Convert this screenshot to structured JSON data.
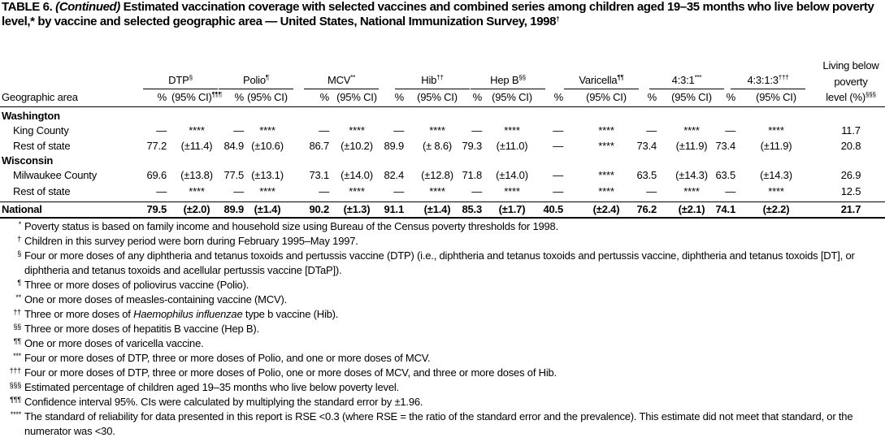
{
  "title": {
    "label": "TABLE 6.",
    "continued": "(Continued)",
    "text": "Estimated vaccination coverage with selected vaccines and combined series among children aged 19–35 months who live below poverty level,* by vaccine and selected geographic area — United States, National Immunization Survey, 1998",
    "mark": "†"
  },
  "header": {
    "area": "Geographic area",
    "groups": [
      {
        "name": "DTP",
        "mark": "§"
      },
      {
        "name": "Polio",
        "mark": "¶"
      },
      {
        "name": "MCV",
        "mark": "**"
      },
      {
        "name": "Hib",
        "mark": "††"
      },
      {
        "name": "Hep B",
        "mark": "§§"
      },
      {
        "name": "Varicella",
        "mark": "¶¶"
      },
      {
        "name": "4:3:1",
        "mark": "***"
      },
      {
        "name": "4:3:1:3",
        "mark": "†††"
      }
    ],
    "pct": "%",
    "ci": "(95% CI)",
    "ci_mark": "¶¶¶",
    "poverty": [
      "Living below",
      "poverty",
      "level (%)"
    ],
    "poverty_mark": "§§§"
  },
  "rows": [
    {
      "label": "Washington"
    },
    {
      "label": "King County",
      "cells": [
        "—",
        "****",
        "—",
        "****",
        "—",
        "****",
        "—",
        "****",
        "—",
        "****",
        "—",
        "****",
        "—",
        "****",
        "—",
        "****"
      ],
      "poverty": "11.7"
    },
    {
      "label": "Rest of state",
      "cells": [
        "77.2",
        "(±11.4)",
        "84.9",
        "(±10.6)",
        "86.7",
        "(±10.2)",
        "89.9",
        "(± 8.6)",
        "79.3",
        "(±11.0)",
        "—",
        "****",
        "73.4",
        "(±11.9)",
        "73.4",
        "(±11.9)"
      ],
      "poverty": "20.8"
    },
    {
      "label": "Wisconsin"
    },
    {
      "label": "Milwaukee County",
      "cells": [
        "69.6",
        "(±13.8)",
        "77.5",
        "(±13.1)",
        "73.1",
        "(±14.0)",
        "82.4",
        "(±12.8)",
        "71.8",
        "(±14.0)",
        "—",
        "****",
        "63.5",
        "(±14.3)",
        "63.5",
        "(±14.3)"
      ],
      "poverty": "26.9"
    },
    {
      "label": "Rest of state",
      "cells": [
        "—",
        "****",
        "—",
        "****",
        "—",
        "****",
        "—",
        "****",
        "—",
        "****",
        "—",
        "****",
        "—",
        "****",
        "—",
        "****"
      ],
      "poverty": "12.5"
    },
    {
      "label": "National",
      "cells": [
        "79.5",
        "(±2.0)",
        "89.9",
        "(±1.4)",
        "90.2",
        "(±1.3)",
        "91.1",
        "(±1.4)",
        "85.3",
        "(±1.7)",
        "40.5",
        "(±2.4)",
        "76.2",
        "(±2.1)",
        "74.1",
        "(±2.2)"
      ],
      "poverty": "21.7"
    }
  ],
  "footnotes": [
    {
      "symbol": "*",
      "text": "Poverty status is based on family income and household size using Bureau of the Census poverty thresholds for 1998."
    },
    {
      "symbol": "†",
      "text": "Children in this survey period were born during February 1995–May 1997."
    },
    {
      "symbol": "§",
      "text": "Four or more doses of any diphtheria and tetanus toxoids and pertussis vaccine (DTP) (i.e., diphtheria and tetanus toxoids and pertussis vaccine, diphtheria and tetanus toxoids [DT], or diphtheria and tetanus toxoids and acellular pertussis vaccine [DTaP])."
    },
    {
      "symbol": "¶",
      "text": "Three or more doses of poliovirus vaccine (Polio)."
    },
    {
      "symbol": "**",
      "text": "One or more doses of measles-containing vaccine (MCV)."
    },
    {
      "symbol": "††",
      "text": "Three or more doses of",
      "italic": "Haemophilus influenzae",
      "after": "type b vaccine (Hib)."
    },
    {
      "symbol": "§§",
      "text": "Three or more doses of hepatitis B vaccine (Hep B)."
    },
    {
      "symbol": "¶¶",
      "text": "One or more doses of varicella vaccine."
    },
    {
      "symbol": "***",
      "text": "Four or more doses of DTP, three or more doses of Polio, and one or more doses of MCV."
    },
    {
      "symbol": "†††",
      "text": "Four or more doses of DTP, three or more doses of Polio, one or more doses of MCV, and three or more doses of Hib."
    },
    {
      "symbol": "§§§",
      "text": "Estimated percentage of children aged 19–35 months who live below poverty level."
    },
    {
      "symbol": "¶¶¶",
      "text": "Confidence interval 95%. CIs were calculated by multiplying the standard error by ±1.96."
    },
    {
      "symbol": "****",
      "text": "The standard of reliability for data presented in this report is RSE <0.3 (where RSE = the ratio of the standard error and the prevalence). This estimate did not meet that standard, or the numerator was <30."
    }
  ]
}
